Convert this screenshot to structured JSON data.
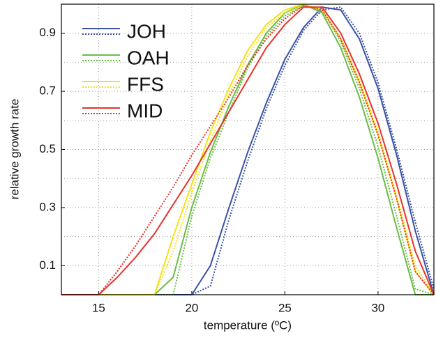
{
  "chart_data": {
    "type": "line",
    "xlabel": "temperature (ºC)",
    "ylabel": "relative growth rate",
    "x": [
      13,
      14,
      15,
      16,
      17,
      18,
      19,
      20,
      21,
      22,
      23,
      24,
      25,
      26,
      27,
      28,
      29,
      30,
      31,
      32,
      33
    ],
    "series": [
      {
        "name": "JOH",
        "color": "#3a53a4",
        "values": [
          0,
          0,
          0,
          0,
          0,
          0,
          0,
          0,
          0.1,
          0.3,
          0.49,
          0.66,
          0.81,
          0.92,
          0.99,
          0.98,
          0.88,
          0.71,
          0.48,
          0.22,
          0
        ],
        "values_dotted": [
          0,
          0,
          0,
          0,
          0,
          0,
          0,
          0,
          0.03,
          0.26,
          0.46,
          0.64,
          0.79,
          0.91,
          0.98,
          0.99,
          0.9,
          0.73,
          0.5,
          0.25,
          0.02
        ]
      },
      {
        "name": "OAH",
        "color": "#6abd45",
        "values": [
          0,
          0,
          0,
          0,
          0,
          0,
          0.06,
          0.3,
          0.49,
          0.65,
          0.79,
          0.9,
          0.97,
          1.0,
          0.97,
          0.85,
          0.68,
          0.47,
          0.23,
          0,
          0
        ],
        "values_dotted": [
          0,
          0,
          0,
          0,
          0,
          0,
          0,
          0.27,
          0.47,
          0.63,
          0.78,
          0.89,
          0.96,
          0.995,
          0.98,
          0.87,
          0.71,
          0.51,
          0.27,
          0.02,
          0
        ]
      },
      {
        "name": "FFS",
        "color": "#f5e11b",
        "values": [
          0,
          0,
          0,
          0,
          0,
          0,
          0.2,
          0.38,
          0.56,
          0.71,
          0.84,
          0.93,
          0.98,
          1.0,
          0.98,
          0.88,
          0.73,
          0.55,
          0.33,
          0.08,
          0
        ],
        "values_dotted": [
          0,
          0,
          0,
          0,
          0,
          0,
          0.15,
          0.35,
          0.53,
          0.69,
          0.82,
          0.92,
          0.97,
          0.995,
          0.98,
          0.88,
          0.74,
          0.56,
          0.34,
          0.1,
          0
        ]
      },
      {
        "name": "MID",
        "color": "#e8322b",
        "values": [
          0,
          0,
          0,
          0.06,
          0.13,
          0.21,
          0.31,
          0.41,
          0.52,
          0.63,
          0.74,
          0.85,
          0.93,
          0.99,
          0.99,
          0.9,
          0.76,
          0.59,
          0.38,
          0.15,
          0
        ],
        "values_dotted": [
          0,
          0,
          0,
          0.08,
          0.17,
          0.27,
          0.37,
          0.48,
          0.58,
          0.68,
          0.79,
          0.88,
          0.95,
          0.995,
          0.98,
          0.88,
          0.73,
          0.55,
          0.33,
          0.08,
          0
        ]
      }
    ],
    "xlim": [
      13,
      33
    ],
    "xticks": [
      15,
      20,
      25,
      30
    ],
    "ylim": [
      0,
      1
    ],
    "yticks": [
      0.1,
      0.3,
      0.5,
      0.7,
      0.9
    ],
    "minor_yticks": [
      0.2,
      0.4,
      0.6,
      0.8
    ],
    "grid": true,
    "legend": "upper-left"
  }
}
